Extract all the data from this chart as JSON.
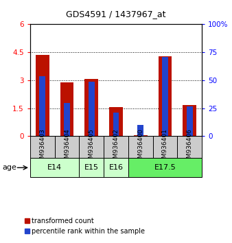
{
  "title": "GDS4591 / 1437967_at",
  "samples": [
    "GSM936403",
    "GSM936404",
    "GSM936405",
    "GSM936402",
    "GSM936400",
    "GSM936401",
    "GSM936406"
  ],
  "transformed_counts": [
    4.35,
    2.88,
    3.05,
    1.57,
    0.04,
    4.28,
    1.68
  ],
  "percentile_ranks_scaled": [
    3.2,
    1.77,
    2.93,
    1.27,
    0.6,
    4.25,
    1.6
  ],
  "age_groups": [
    {
      "label": "E14",
      "cols": [
        0,
        1
      ],
      "color": "#ccffcc"
    },
    {
      "label": "E15",
      "cols": [
        2
      ],
      "color": "#ccffcc"
    },
    {
      "label": "E16",
      "cols": [
        3
      ],
      "color": "#ccffcc"
    },
    {
      "label": "E17.5",
      "cols": [
        4,
        5,
        6
      ],
      "color": "#66ee66"
    }
  ],
  "ylim_left": [
    0,
    6
  ],
  "ylim_right": [
    0,
    100
  ],
  "yticks_left": [
    0,
    1.5,
    3.0,
    4.5,
    6.0
  ],
  "ytick_labels_left": [
    "0",
    "1.5",
    "3",
    "4.5",
    "6"
  ],
  "yticks_right": [
    0,
    25,
    50,
    75,
    100
  ],
  "ytick_labels_right": [
    "0",
    "25",
    "50",
    "75",
    "100%"
  ],
  "bar_color_red": "#bb1100",
  "bar_color_blue": "#2244cc",
  "red_bar_width": 0.55,
  "blue_bar_width": 0.25,
  "sample_bg_color": "#cccccc",
  "plot_bg": "#ffffff",
  "legend_red": "transformed count",
  "legend_blue": "percentile rank within the sample",
  "age_label_fontsize": 8,
  "sample_fontsize": 6.5
}
